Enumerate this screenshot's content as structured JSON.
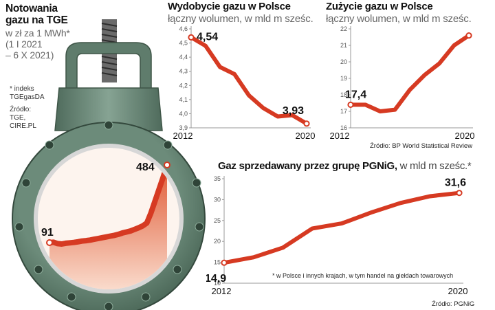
{
  "tge": {
    "title": "Notowania gazu na TGE",
    "subtitle": "w zł za 1 MWh*",
    "period_line1": "(1 I 2021",
    "period_line2": "– 6 X 2021)",
    "footnote": "* indeks TGEgasDA",
    "source_label": "Źródło:",
    "source_line1": "TGE,",
    "source_line2": "CIRE.PL"
  },
  "extraction": {
    "title": "Wydobycie gazu w Polsce",
    "subtitle": "łączny wolumen, w mld m sześc."
  },
  "consumption": {
    "title": "Zużycie gazu w Polsce",
    "subtitle": "łączny wolumen, w mld m sześc."
  },
  "bp_source": "Źródło: BP World Statistical Review",
  "pgnig": {
    "title_bold": "Gaz sprzedawany przez grupę PGNiG,",
    "title_rest": " w mld m sześc.*",
    "footnote": "* w Polsce i innych krajach, w tym handel na giełdach towarowych",
    "source": "Źródło: PGNiG"
  },
  "colors": {
    "line": "#d63a22",
    "valve": "#5f7c6c",
    "fill_top": "#e05a35",
    "fill_bottom": "#fbe1d3"
  },
  "chart_data": [
    {
      "id": "tge",
      "type": "area",
      "title": "Notowania gazu na TGE",
      "ylabel": "zł za 1 MWh",
      "x_range": [
        "2021-01-01",
        "2021-10-06"
      ],
      "start_label": "91",
      "end_label": "484",
      "values": [
        91,
        93,
        86,
        84,
        88,
        90,
        92,
        95,
        99,
        101,
        104,
        108,
        112,
        116,
        120,
        124,
        128,
        133,
        140,
        145,
        150,
        158,
        166,
        176,
        190,
        240,
        300,
        360,
        420,
        484
      ]
    },
    {
      "id": "extraction",
      "type": "line",
      "title": "Wydobycie gazu w Polsce",
      "x": [
        2012,
        2013,
        2014,
        2015,
        2016,
        2017,
        2018,
        2019,
        2020
      ],
      "values": [
        4.54,
        4.48,
        4.33,
        4.28,
        4.13,
        4.04,
        3.98,
        3.99,
        3.93
      ],
      "ylim": [
        3.9,
        4.6
      ],
      "yticks": [
        "3,9",
        "4,0",
        "4,1",
        "4,2",
        "4,3",
        "4,4",
        "4,5",
        "4,6"
      ],
      "xlabels": [
        "2012",
        "2020"
      ],
      "start_label": "4,54",
      "end_label": "3,93"
    },
    {
      "id": "consumption",
      "type": "line",
      "title": "Zużycie gazu w Polsce",
      "x": [
        2012,
        2013,
        2014,
        2015,
        2016,
        2017,
        2018,
        2019,
        2020
      ],
      "values": [
        17.4,
        17.4,
        17.0,
        17.1,
        18.3,
        19.2,
        19.9,
        21.0,
        21.6
      ],
      "ylim": [
        16,
        22
      ],
      "yticks": [
        "16",
        "17",
        "18",
        "19",
        "20",
        "21",
        "22"
      ],
      "xlabels": [
        "2012",
        "2020"
      ],
      "start_label": "17,4",
      "end_label": "21,6"
    },
    {
      "id": "pgnig",
      "type": "line",
      "title": "Gaz sprzedawany przez grupę PGNiG, w mld m sześc.*",
      "x": [
        2012,
        2013,
        2014,
        2015,
        2016,
        2017,
        2018,
        2019,
        2020
      ],
      "values": [
        14.9,
        16.2,
        18.5,
        23.1,
        24.3,
        26.9,
        29.2,
        30.8,
        31.6
      ],
      "ylim": [
        10,
        35
      ],
      "yticks": [
        "10",
        "15",
        "20",
        "25",
        "30",
        "35"
      ],
      "xlabels": [
        "2012",
        "2020"
      ],
      "start_label": "14,9",
      "end_label": "31,6"
    }
  ]
}
